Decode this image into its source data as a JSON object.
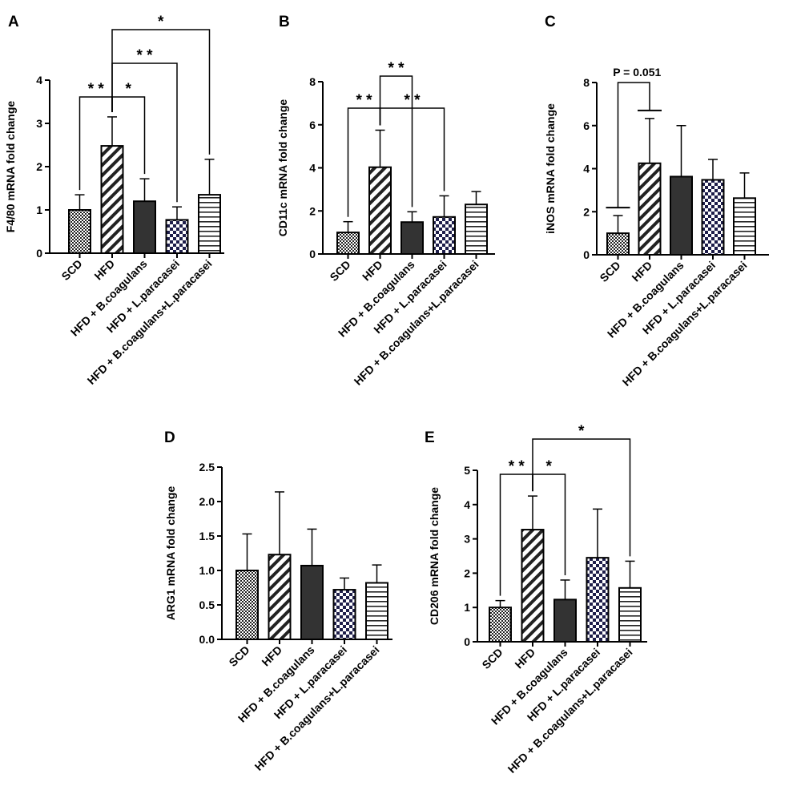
{
  "chart_data": [
    {
      "panel": "A",
      "type": "bar",
      "ylabel": "F4/80 mRNA fold change",
      "categories": [
        "SCD",
        "HFD",
        "HFD + B.coagulans",
        "HFD + L.paracasei",
        "HFD + B.coagulans+L.paracasei"
      ],
      "values": [
        1.0,
        2.48,
        1.2,
        0.77,
        1.35
      ],
      "errors": [
        0.35,
        0.67,
        0.52,
        0.3,
        0.82
      ],
      "ylim": [
        0,
        4
      ],
      "yticks": [
        "0",
        "1",
        "2",
        "3",
        "4"
      ],
      "significance": [
        {
          "from": 0,
          "to": 1,
          "label": "**"
        },
        {
          "from": 1,
          "to": 2,
          "label": "*"
        },
        {
          "from": 1,
          "to": 3,
          "label": "**"
        },
        {
          "from": 1,
          "to": 4,
          "label": "*"
        }
      ]
    },
    {
      "panel": "B",
      "type": "bar",
      "ylabel": "CD11c mRNA fold change",
      "categories": [
        "SCD",
        "HFD",
        "HFD + B.coagulans",
        "HFD + L.paracasei",
        "HFD + B.coagulans+L.paracasei"
      ],
      "values": [
        1.0,
        4.03,
        1.48,
        1.72,
        2.3
      ],
      "errors": [
        0.5,
        1.72,
        0.48,
        0.98,
        0.6
      ],
      "ylim": [
        0,
        8
      ],
      "yticks": [
        "0",
        "2",
        "4",
        "6",
        "8"
      ],
      "significance": [
        {
          "from": 0,
          "to": 1,
          "label": "**"
        },
        {
          "from": 1,
          "to": 2,
          "label": "**"
        },
        {
          "from": 1,
          "to": 3,
          "label": "**"
        }
      ]
    },
    {
      "panel": "C",
      "type": "bar",
      "ylabel": "iNOS mRNA fold change",
      "categories": [
        "SCD",
        "HFD",
        "HFD + B.coagulans",
        "HFD + L.paracasei",
        "HFD + B.coagulans+L.paracasei"
      ],
      "values": [
        1.0,
        4.25,
        3.63,
        3.48,
        2.63
      ],
      "errors": [
        0.82,
        2.08,
        2.37,
        0.95,
        1.17
      ],
      "ylim": [
        0,
        8
      ],
      "yticks": [
        "0",
        "2",
        "4",
        "6",
        "8"
      ],
      "significance": [
        {
          "from": 0,
          "to": 1,
          "label": "P = 0.051"
        }
      ]
    },
    {
      "panel": "D",
      "type": "bar",
      "ylabel": "ARG1 mRNA fold change",
      "categories": [
        "SCD",
        "HFD",
        "HFD + B.coagulans",
        "HFD + L.paracasei",
        "HFD + B.coagulans+L.paracasei"
      ],
      "values": [
        1.0,
        1.23,
        1.07,
        0.72,
        0.82
      ],
      "errors": [
        0.53,
        0.91,
        0.53,
        0.17,
        0.26
      ],
      "ylim": [
        0,
        2.5
      ],
      "yticks": [
        "0.0",
        "0.5",
        "1.0",
        "1.5",
        "2.0",
        "2.5"
      ],
      "significance": []
    },
    {
      "panel": "E",
      "type": "bar",
      "ylabel": "CD206 mRNA fold change",
      "categories": [
        "SCD",
        "HFD",
        "HFD + B.coagulans",
        "HFD + L.paracasei",
        "HFD + B.coagulans+L.paracasei"
      ],
      "values": [
        1.0,
        3.27,
        1.23,
        2.45,
        1.57
      ],
      "errors": [
        0.2,
        0.98,
        0.57,
        1.42,
        0.78
      ],
      "ylim": [
        0,
        5
      ],
      "yticks": [
        "0",
        "1",
        "2",
        "3",
        "4",
        "5"
      ],
      "significance": [
        {
          "from": 0,
          "to": 1,
          "label": "**"
        },
        {
          "from": 1,
          "to": 2,
          "label": "*"
        },
        {
          "from": 1,
          "to": 4,
          "label": "*"
        }
      ]
    }
  ]
}
